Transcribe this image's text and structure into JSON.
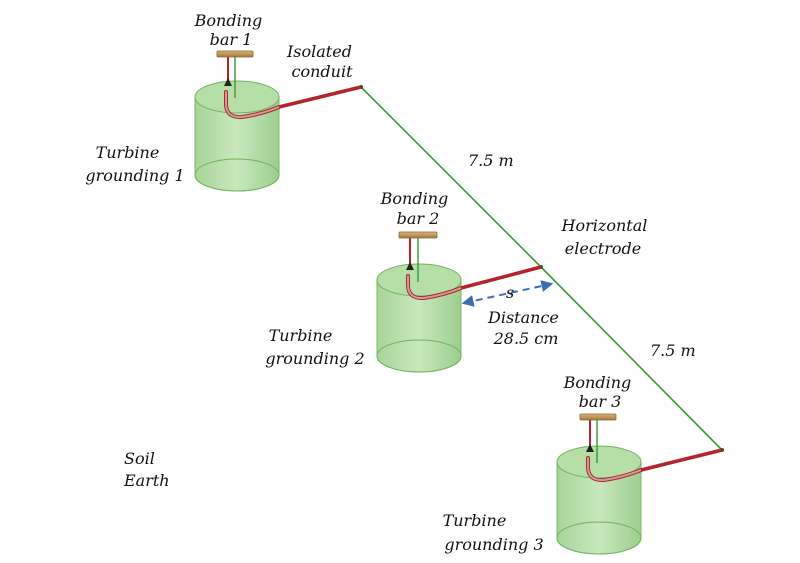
{
  "labels": {
    "bonding_bar_1": [
      "Bonding",
      "bar 1"
    ],
    "bonding_bar_2": [
      "Bonding",
      "bar 2"
    ],
    "bonding_bar_3": [
      "Bonding",
      "bar 3"
    ],
    "isolated_conduit": [
      "Isolated",
      "conduit"
    ],
    "turbine_grounding_1": [
      "Turbine",
      "grounding 1"
    ],
    "turbine_grounding_2": [
      "Turbine",
      "grounding 2"
    ],
    "turbine_grounding_3": [
      "Turbine",
      "grounding 3"
    ],
    "horizontal_electrode": [
      "Horizontal",
      "electrode"
    ],
    "length_upper": "7.5 m",
    "length_lower": "7.5 m",
    "distance_symbol": "s",
    "distance": [
      "Distance",
      "28.5 cm"
    ],
    "soil": [
      "Soil",
      "Earth"
    ]
  },
  "colors": {
    "cylinder_fill": "#a8d89a",
    "cylinder_stroke": "#6fb35c",
    "conduit": "#b5242a",
    "electrode": "#3a9a3a",
    "bonding_bar": "#c69a5c",
    "distance_arrow": "#3b6fb5"
  }
}
